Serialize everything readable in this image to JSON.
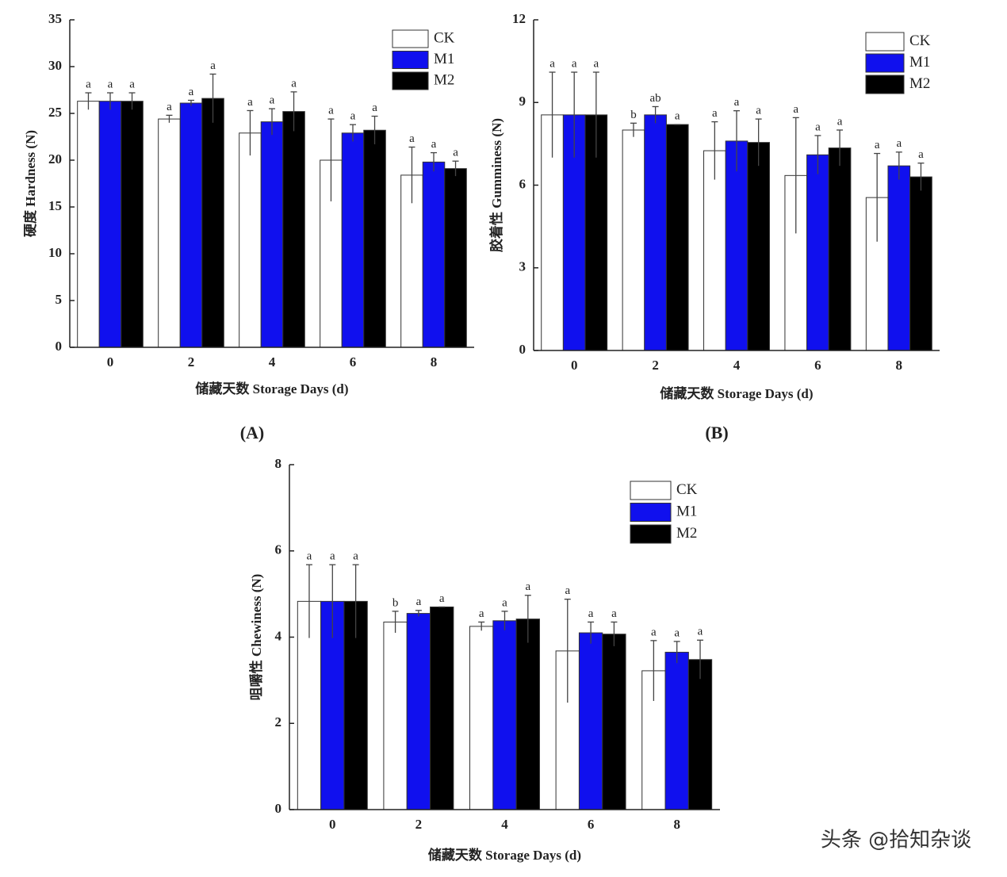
{
  "chart_data": [
    {
      "type": "bar",
      "panel_label": "(A)",
      "ylabel": "硬度 Hardness (N)",
      "xlabel": "储藏天数 Storage Days (d)",
      "categories": [
        "0",
        "2",
        "4",
        "6",
        "8"
      ],
      "ylim": [
        0,
        35
      ],
      "yticks": [
        0,
        5,
        10,
        15,
        20,
        25,
        30,
        35
      ],
      "legend": "upper right",
      "series": [
        {
          "name": "CK",
          "color": "#ffffff",
          "values": [
            26.3,
            24.4,
            22.9,
            20.0,
            18.4
          ],
          "errors": [
            0.9,
            0.4,
            2.4,
            4.4,
            3.0
          ],
          "labels": [
            "a",
            "a",
            "a",
            "a",
            "a"
          ]
        },
        {
          "name": "M1",
          "color": "#1010ee",
          "values": [
            26.3,
            26.1,
            24.1,
            22.9,
            19.8
          ],
          "errors": [
            0.9,
            0.3,
            1.4,
            0.9,
            1.0
          ],
          "labels": [
            "a",
            "a",
            "a",
            "a",
            "a"
          ]
        },
        {
          "name": "M2",
          "color": "#000000",
          "values": [
            26.3,
            26.6,
            25.2,
            23.2,
            19.1
          ],
          "errors": [
            0.9,
            2.6,
            2.1,
            1.5,
            0.8
          ],
          "labels": [
            "a",
            "a",
            "a",
            "a",
            "a"
          ]
        }
      ]
    },
    {
      "type": "bar",
      "panel_label": "(B)",
      "ylabel": "胶着性 Gumminess (N)",
      "xlabel": "储藏天数 Storage Days (d)",
      "categories": [
        "0",
        "2",
        "4",
        "6",
        "8"
      ],
      "ylim": [
        0,
        12
      ],
      "yticks": [
        0,
        3,
        6,
        9,
        12
      ],
      "legend": "upper right",
      "series": [
        {
          "name": "CK",
          "color": "#ffffff",
          "values": [
            8.55,
            8.0,
            7.25,
            6.35,
            5.55
          ],
          "errors": [
            1.55,
            0.25,
            1.05,
            2.1,
            1.6
          ],
          "labels": [
            "a",
            "b",
            "a",
            "a",
            "a"
          ]
        },
        {
          "name": "M1",
          "color": "#1010ee",
          "values": [
            8.55,
            8.55,
            7.6,
            7.1,
            6.7
          ],
          "errors": [
            1.55,
            0.3,
            1.1,
            0.7,
            0.5
          ],
          "labels": [
            "a",
            "ab",
            "a",
            "a",
            "a"
          ]
        },
        {
          "name": "M2",
          "color": "#000000",
          "values": [
            8.55,
            8.2,
            7.55,
            7.35,
            6.3
          ],
          "errors": [
            1.55,
            0.0,
            0.85,
            0.65,
            0.5
          ],
          "labels": [
            "a",
            "a",
            "a",
            "a",
            "a"
          ]
        }
      ]
    },
    {
      "type": "bar",
      "ylabel": "咀嚼性 Chewiness (N)",
      "xlabel": "储藏天数 Storage Days (d)",
      "categories": [
        "0",
        "2",
        "4",
        "6",
        "8"
      ],
      "ylim": [
        0,
        8
      ],
      "yticks": [
        0,
        2,
        4,
        6,
        8
      ],
      "legend": "upper right",
      "series": [
        {
          "name": "CK",
          "color": "#ffffff",
          "values": [
            4.83,
            4.35,
            4.25,
            3.68,
            3.22
          ],
          "errors": [
            0.85,
            0.25,
            0.1,
            1.2,
            0.7
          ],
          "labels": [
            "a",
            "b",
            "a",
            "a",
            "a"
          ]
        },
        {
          "name": "M1",
          "color": "#1010ee",
          "values": [
            4.83,
            4.55,
            4.38,
            4.1,
            3.65
          ],
          "errors": [
            0.85,
            0.07,
            0.22,
            0.25,
            0.25
          ],
          "labels": [
            "a",
            "a",
            "a",
            "a",
            "a"
          ]
        },
        {
          "name": "M2",
          "color": "#000000",
          "values": [
            4.83,
            4.7,
            4.42,
            4.07,
            3.48
          ],
          "errors": [
            0.85,
            0.0,
            0.55,
            0.28,
            0.45
          ],
          "labels": [
            "a",
            "a",
            "a",
            "a",
            "a"
          ]
        }
      ]
    }
  ],
  "watermark": "头条 @拾知杂谈"
}
